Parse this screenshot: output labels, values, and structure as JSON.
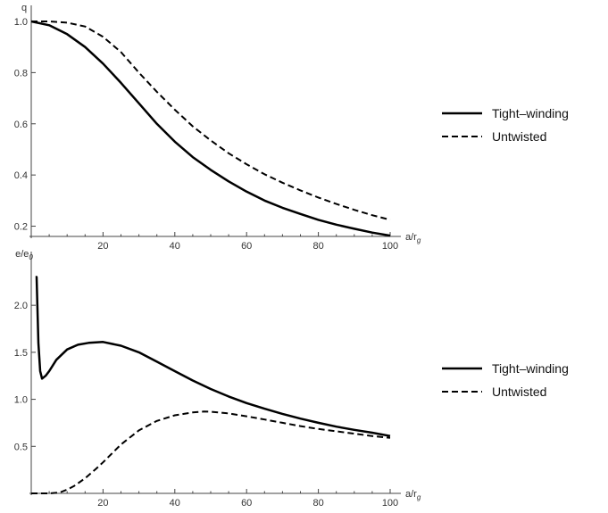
{
  "chart_data": [
    {
      "type": "line",
      "xlabel": "a/r_g",
      "ylabel": "q",
      "xlim": [
        0,
        100
      ],
      "ylim": [
        0.16,
        1.0
      ],
      "x_ticks": [
        20,
        40,
        60,
        80,
        100
      ],
      "y_ticks": [
        0.2,
        0.4,
        0.6,
        0.8,
        1.0
      ],
      "x_tick_labels": [
        "20",
        "40",
        "60",
        "80",
        "100"
      ],
      "y_tick_labels": [
        "0.2",
        "0.4",
        "0.6",
        "0.8",
        "1.0"
      ],
      "legend_position": "right",
      "grid": false,
      "series": [
        {
          "name": "Tight–winding",
          "style": "solid",
          "x": [
            0,
            5,
            10,
            15,
            20,
            25,
            30,
            35,
            40,
            45,
            50,
            55,
            60,
            65,
            70,
            75,
            80,
            85,
            90,
            95,
            100
          ],
          "y": [
            1.0,
            0.985,
            0.95,
            0.9,
            0.835,
            0.76,
            0.68,
            0.6,
            0.53,
            0.47,
            0.42,
            0.375,
            0.335,
            0.3,
            0.272,
            0.248,
            0.225,
            0.206,
            0.19,
            0.175,
            0.163
          ]
        },
        {
          "name": "Untwisted",
          "style": "dashed",
          "x": [
            0,
            5,
            10,
            15,
            20,
            25,
            30,
            35,
            40,
            45,
            50,
            55,
            60,
            65,
            70,
            75,
            80,
            85,
            90,
            95,
            100
          ],
          "y": [
            1.0,
            1.0,
            0.995,
            0.98,
            0.94,
            0.88,
            0.8,
            0.725,
            0.655,
            0.59,
            0.535,
            0.485,
            0.442,
            0.403,
            0.37,
            0.34,
            0.312,
            0.287,
            0.264,
            0.243,
            0.225
          ]
        }
      ]
    },
    {
      "type": "line",
      "xlabel": "a/r_g",
      "ylabel": "e/e_0",
      "xlim": [
        0,
        100
      ],
      "ylim": [
        0,
        2.4
      ],
      "x_ticks": [
        20,
        40,
        60,
        80,
        100
      ],
      "y_ticks": [
        0.5,
        1.0,
        1.5,
        2.0
      ],
      "x_tick_labels": [
        "20",
        "40",
        "60",
        "80",
        "100"
      ],
      "y_tick_labels": [
        "0.5",
        "1.0",
        "1.5",
        "2.0"
      ],
      "legend_position": "right",
      "grid": false,
      "series": [
        {
          "name": "Tight–winding",
          "style": "solid",
          "x": [
            1.2,
            1.5,
            2,
            2.5,
            3,
            4,
            5,
            7,
            10,
            13,
            16,
            20,
            25,
            30,
            35,
            40,
            45,
            50,
            55,
            60,
            65,
            70,
            75,
            80,
            85,
            90,
            95,
            100
          ],
          "y": [
            2.3,
            2.3,
            1.6,
            1.3,
            1.22,
            1.25,
            1.3,
            1.42,
            1.53,
            1.58,
            1.6,
            1.61,
            1.57,
            1.5,
            1.4,
            1.3,
            1.2,
            1.11,
            1.03,
            0.96,
            0.9,
            0.845,
            0.795,
            0.75,
            0.71,
            0.675,
            0.645,
            0.61
          ]
        },
        {
          "name": "Untwisted",
          "style": "dashed",
          "x": [
            0,
            5,
            8,
            10,
            12,
            15,
            18,
            20,
            25,
            30,
            35,
            40,
            45,
            48,
            50,
            55,
            60,
            65,
            70,
            75,
            80,
            85,
            90,
            95,
            100
          ],
          "y": [
            0.0,
            0.0,
            0.01,
            0.04,
            0.08,
            0.16,
            0.26,
            0.33,
            0.52,
            0.67,
            0.77,
            0.83,
            0.86,
            0.87,
            0.868,
            0.85,
            0.82,
            0.785,
            0.75,
            0.715,
            0.685,
            0.66,
            0.635,
            0.61,
            0.59
          ]
        }
      ]
    }
  ]
}
